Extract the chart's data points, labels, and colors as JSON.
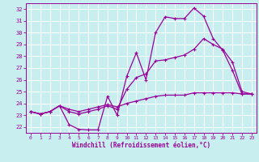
{
  "xlabel": "Windchill (Refroidissement éolien,°C)",
  "xlim": [
    -0.5,
    23.5
  ],
  "ylim": [
    21.5,
    32.5
  ],
  "yticks": [
    22,
    23,
    24,
    25,
    26,
    27,
    28,
    29,
    30,
    31,
    32
  ],
  "xticks": [
    0,
    1,
    2,
    3,
    4,
    5,
    6,
    7,
    8,
    9,
    10,
    11,
    12,
    13,
    14,
    15,
    16,
    17,
    18,
    19,
    20,
    21,
    22,
    23
  ],
  "bg_color": "#c8eef0",
  "grid_color": "#ffffff",
  "line_color": "#990099",
  "line1_y": [
    23.3,
    23.1,
    23.3,
    23.8,
    22.2,
    21.8,
    21.75,
    21.75,
    24.6,
    23.0,
    26.3,
    28.3,
    26.0,
    30.0,
    31.35,
    31.2,
    31.2,
    32.1,
    31.4,
    29.5,
    28.5,
    26.8,
    24.8,
    24.8
  ],
  "line2_y": [
    23.3,
    23.1,
    23.3,
    23.8,
    23.3,
    23.1,
    23.3,
    23.5,
    23.8,
    23.5,
    25.2,
    26.2,
    26.5,
    27.6,
    27.7,
    27.9,
    28.1,
    28.6,
    29.5,
    29.0,
    28.6,
    27.5,
    25.0,
    24.8
  ],
  "line3_y": [
    23.3,
    23.1,
    23.3,
    23.8,
    23.5,
    23.3,
    23.5,
    23.7,
    23.9,
    23.7,
    24.0,
    24.2,
    24.4,
    24.6,
    24.7,
    24.7,
    24.7,
    24.9,
    24.9,
    24.9,
    24.9,
    24.9,
    24.8,
    24.8
  ]
}
